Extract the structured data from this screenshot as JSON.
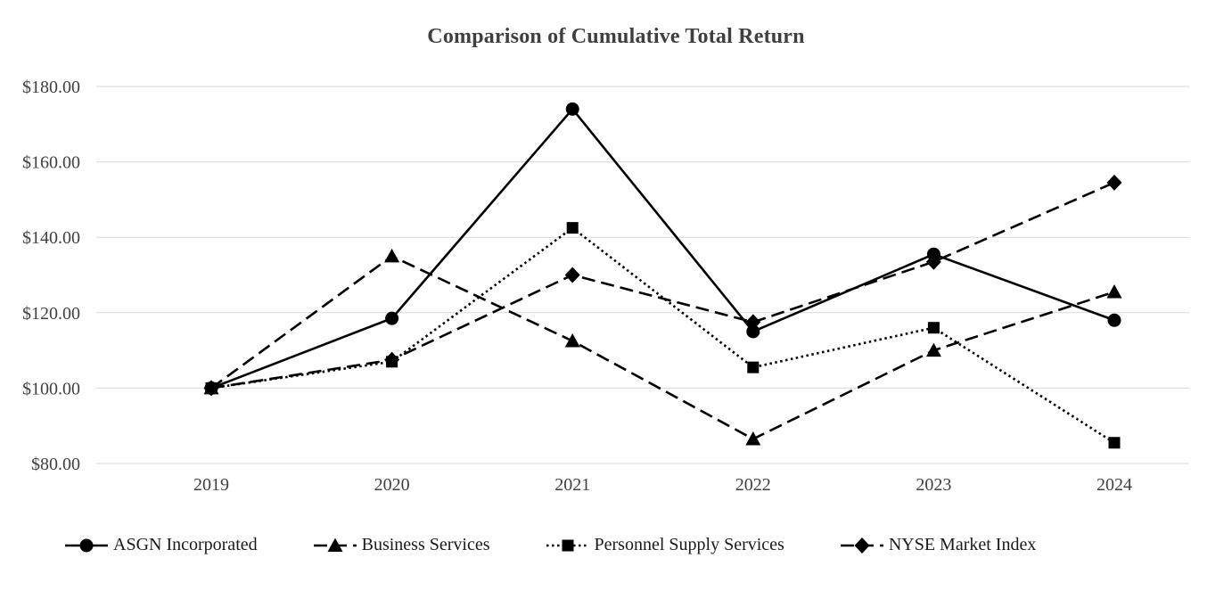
{
  "chart_data": {
    "type": "line",
    "title": "Comparison of Cumulative Total Return",
    "categories": [
      "2019",
      "2020",
      "2021",
      "2022",
      "2023",
      "2024"
    ],
    "series": [
      {
        "name": "ASGN Incorporated",
        "values": [
          100.0,
          118.5,
          174.0,
          115.0,
          135.5,
          118.0
        ],
        "marker": "circle",
        "line_style": "solid"
      },
      {
        "name": "Business Services",
        "values": [
          100.0,
          135.0,
          112.5,
          86.5,
          110.0,
          125.5
        ],
        "marker": "triangle",
        "line_style": "dashed"
      },
      {
        "name": "Personnel Supply Services",
        "values": [
          100.0,
          107.0,
          142.5,
          105.5,
          116.0,
          85.5
        ],
        "marker": "square",
        "line_style": "dotted"
      },
      {
        "name": "NYSE Market Index",
        "values": [
          100.0,
          107.5,
          130.0,
          117.5,
          133.5,
          154.5
        ],
        "marker": "diamond",
        "line_style": "dashed"
      }
    ],
    "ylim": [
      80,
      180
    ],
    "ytick_labels": [
      "$80.00",
      "$100.00",
      "$120.00",
      "$140.00",
      "$160.00",
      "$180.00"
    ],
    "xlabel": "",
    "ylabel": "",
    "grid": true,
    "legend_position": "bottom",
    "colors": {
      "line": "#000000",
      "grid": "#d9d9d9",
      "text": "#404040",
      "background": "#ffffff"
    }
  }
}
